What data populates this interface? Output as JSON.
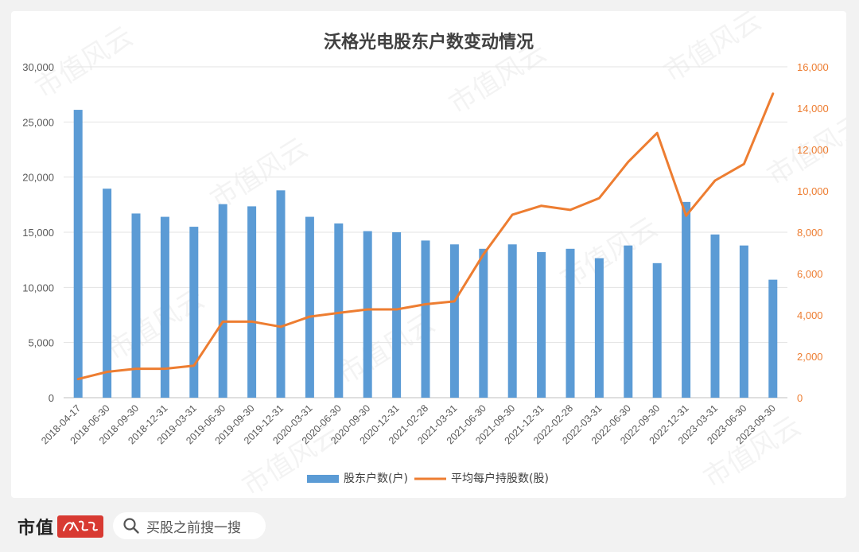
{
  "chart_data": {
    "type": "bar",
    "title": "沃格光电股东户数变动情况",
    "categories": [
      "2018-04-17",
      "2018-06-30",
      "2018-09-30",
      "2018-12-31",
      "2019-03-31",
      "2019-06-30",
      "2019-09-30",
      "2019-12-31",
      "2020-03-31",
      "2020-06-30",
      "2020-09-30",
      "2020-12-31",
      "2021-02-28",
      "2021-03-31",
      "2021-06-30",
      "2021-09-30",
      "2021-12-31",
      "2022-02-28",
      "2022-03-31",
      "2022-06-30",
      "2022-09-30",
      "2022-12-31",
      "2023-03-31",
      "2023-06-30",
      "2023-09-30"
    ],
    "series": [
      {
        "name": "股东户数(户)",
        "type": "bar",
        "axis": "left",
        "values": [
          26100,
          18950,
          16700,
          16400,
          15500,
          17550,
          17350,
          18800,
          16400,
          15800,
          15100,
          15000,
          14250,
          13900,
          13500,
          13900,
          13200,
          13500,
          12650,
          13800,
          12200,
          17750,
          14800,
          13800,
          10700
        ]
      },
      {
        "name": "平均每户持股数(股)",
        "type": "line",
        "axis": "right",
        "values": [
          900,
          1250,
          1400,
          1400,
          1550,
          3680,
          3680,
          3430,
          3920,
          4100,
          4270,
          4270,
          4520,
          4660,
          6930,
          8850,
          9280,
          9080,
          9650,
          11400,
          12800,
          8800,
          10500,
          11300,
          14700
        ]
      }
    ],
    "y_left": {
      "min": 0,
      "max": 30000,
      "ticks": [
        "0",
        "5,000",
        "10,000",
        "15,000",
        "20,000",
        "25,000",
        "30,000"
      ]
    },
    "y_right": {
      "min": 0,
      "max": 16000,
      "ticks": [
        "0",
        "2,000",
        "4,000",
        "6,000",
        "8,000",
        "10,000",
        "12,000",
        "14,000",
        "16,000"
      ]
    },
    "grid": true,
    "legend": "bottom",
    "colors": {
      "bar": "#5b9bd5",
      "line": "#ed7d31",
      "right_axis_text": "#ed7d31",
      "left_axis_text": "#595959",
      "grid": "#e3e3e3"
    }
  },
  "watermark": "市值风云",
  "footer": {
    "brand": "市值",
    "seal_text": "风云",
    "search_placeholder": "买股之前搜一搜",
    "search_icon": "search-icon"
  }
}
